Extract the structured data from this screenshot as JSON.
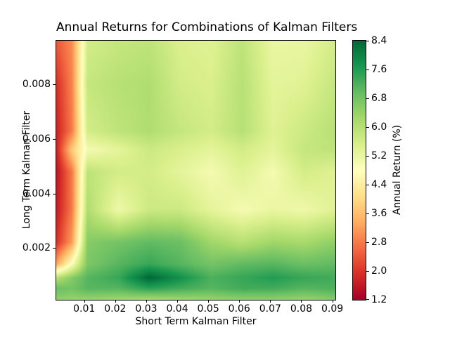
{
  "chart_data": {
    "type": "heatmap",
    "title": "Annual Returns for Combinations of Kalman Filters",
    "xlabel": "Short Term Kalman Filter",
    "ylabel": "Long Term Kalman Filter",
    "xlim": [
      0.001,
      0.091
    ],
    "ylim": [
      0.0001,
      0.0096
    ],
    "x_ticks": [
      0.01,
      0.02,
      0.03,
      0.04,
      0.05,
      0.06,
      0.07,
      0.08,
      0.09
    ],
    "x_tick_labels": [
      "0.01",
      "0.02",
      "0.03",
      "0.04",
      "0.05",
      "0.06",
      "0.07",
      "0.08",
      "0.09"
    ],
    "y_ticks": [
      0.002,
      0.004,
      0.006,
      0.008
    ],
    "y_tick_labels": [
      "0.002",
      "0.004",
      "0.006",
      "0.008"
    ],
    "grid": false,
    "background": "#ffffff",
    "colormap": "RdYlGn",
    "colormap_anchors": [
      "#a50026",
      "#d73027",
      "#f46d43",
      "#fdae61",
      "#fee08b",
      "#ffffbf",
      "#d9ef8b",
      "#a6d96a",
      "#66bd63",
      "#1a9850",
      "#006837"
    ],
    "colorbar": {
      "label": "Annual Return (%)",
      "vmin": 1.2,
      "vmax": 8.4,
      "ticks": [
        1.2,
        2.0,
        2.8,
        3.6,
        4.4,
        5.2,
        6.0,
        6.8,
        7.6,
        8.4
      ],
      "tick_labels": [
        "1.2",
        "2.0",
        "2.8",
        "3.6",
        "4.4",
        "5.2",
        "6.0",
        "6.8",
        "7.6",
        "8.4"
      ],
      "position": "right"
    },
    "x": [
      0.001,
      0.006,
      0.011,
      0.021,
      0.031,
      0.041,
      0.051,
      0.061,
      0.071,
      0.081,
      0.091
    ],
    "y": [
      0.0001,
      0.0005,
      0.0009,
      0.0014,
      0.0022,
      0.0034,
      0.0048,
      0.0056,
      0.0063,
      0.008,
      0.0096
    ],
    "values": [
      [
        6.5,
        6.4,
        6.4,
        6.3,
        6.2,
        6.3,
        6.4,
        6.5,
        6.5,
        6.4,
        6.6
      ],
      [
        6.9,
        6.8,
        7.1,
        7.1,
        7.5,
        7.3,
        7.1,
        7.3,
        7.3,
        7.1,
        7.2
      ],
      [
        6.0,
        6.6,
        7.1,
        7.4,
        8.4,
        7.8,
        7.2,
        7.4,
        7.6,
        7.4,
        7.3
      ],
      [
        3.3,
        4.9,
        6.7,
        7.1,
        7.4,
        7.1,
        6.8,
        7.0,
        7.1,
        6.9,
        7.0
      ],
      [
        1.9,
        3.2,
        6.6,
        6.8,
        7.0,
        6.9,
        6.3,
        6.0,
        6.3,
        6.2,
        6.5
      ],
      [
        1.6,
        2.8,
        6.1,
        5.1,
        5.7,
        5.7,
        5.3,
        5.0,
        5.2,
        5.1,
        5.4
      ],
      [
        1.5,
        2.8,
        5.9,
        5.6,
        5.6,
        5.3,
        5.0,
        5.4,
        5.0,
        5.6,
        5.4
      ],
      [
        1.7,
        3.8,
        5.0,
        5.3,
        5.7,
        5.5,
        5.3,
        5.6,
        5.3,
        5.8,
        5.9
      ],
      [
        1.7,
        2.8,
        5.6,
        5.9,
        6.1,
        5.8,
        5.6,
        6.0,
        5.4,
        5.7,
        6.0
      ],
      [
        1.9,
        2.9,
        5.8,
        6.0,
        6.1,
        5.6,
        5.5,
        6.0,
        5.3,
        5.4,
        5.8
      ],
      [
        2.4,
        3.0,
        5.6,
        5.8,
        5.9,
        5.5,
        5.4,
        5.9,
        5.2,
        5.2,
        5.6
      ]
    ]
  }
}
